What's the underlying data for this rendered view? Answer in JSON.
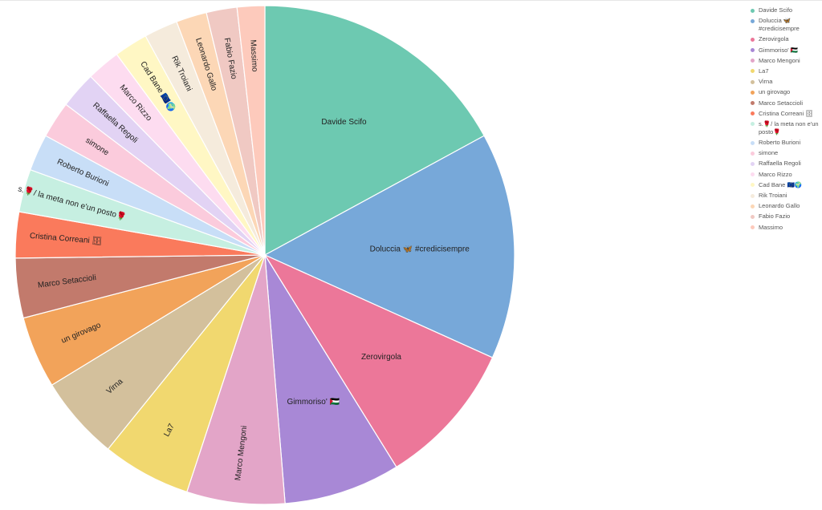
{
  "chart_data": {
    "type": "pie",
    "title": "",
    "legend_position": "right",
    "slices": [
      {
        "label": "Davide Scifo",
        "value": 17.2,
        "color": "#6dc9b1"
      },
      {
        "label": "Doluccia 🦋 #credicisempre",
        "value": 14.8,
        "color": "#77a8d9"
      },
      {
        "label": "Zerovirgola",
        "value": 9.5,
        "color": "#ec7799"
      },
      {
        "label": "Gimmoriso' 🇵🇸",
        "value": 7.6,
        "color": "#a888d6"
      },
      {
        "label": "Marco Mengoni",
        "value": 6.4,
        "color": "#e3a5c8"
      },
      {
        "label": "La7",
        "value": 5.8,
        "color": "#f1d86f"
      },
      {
        "label": "Virna",
        "value": 5.5,
        "color": "#d3c09c"
      },
      {
        "label": "un girovago",
        "value": 4.7,
        "color": "#f2a35a"
      },
      {
        "label": "Marco Setaccioli",
        "value": 3.9,
        "color": "#c27a6c"
      },
      {
        "label": "Cristina Correani 🗄",
        "value": 3.0,
        "color": "#fa7a5c"
      },
      {
        "label": "s.🌹/ la meta non e'un posto🌹",
        "value": 2.8,
        "color": "#c6efe1"
      },
      {
        "label": "Roberto Burioni",
        "value": 2.4,
        "color": "#c8def7"
      },
      {
        "label": "simone",
        "value": 2.4,
        "color": "#fbcbdc"
      },
      {
        "label": "Raffaella Regoli",
        "value": 2.4,
        "color": "#e2d3f4"
      },
      {
        "label": "Marco Rizzo",
        "value": 2.2,
        "color": "#fddcf0"
      },
      {
        "label": "Cad Bane 🇪🇺🌍",
        "value": 2.2,
        "color": "#fff7c4"
      },
      {
        "label": "Rik Troiani",
        "value": 2.2,
        "color": "#f5ebdc"
      },
      {
        "label": "Leonardo Gallo",
        "value": 2.0,
        "color": "#fcd7b6"
      },
      {
        "label": "Fabio Fazio",
        "value": 2.0,
        "color": "#f0c9c3"
      },
      {
        "label": "Massimo",
        "value": 1.8,
        "color": "#fdcabc"
      }
    ]
  }
}
